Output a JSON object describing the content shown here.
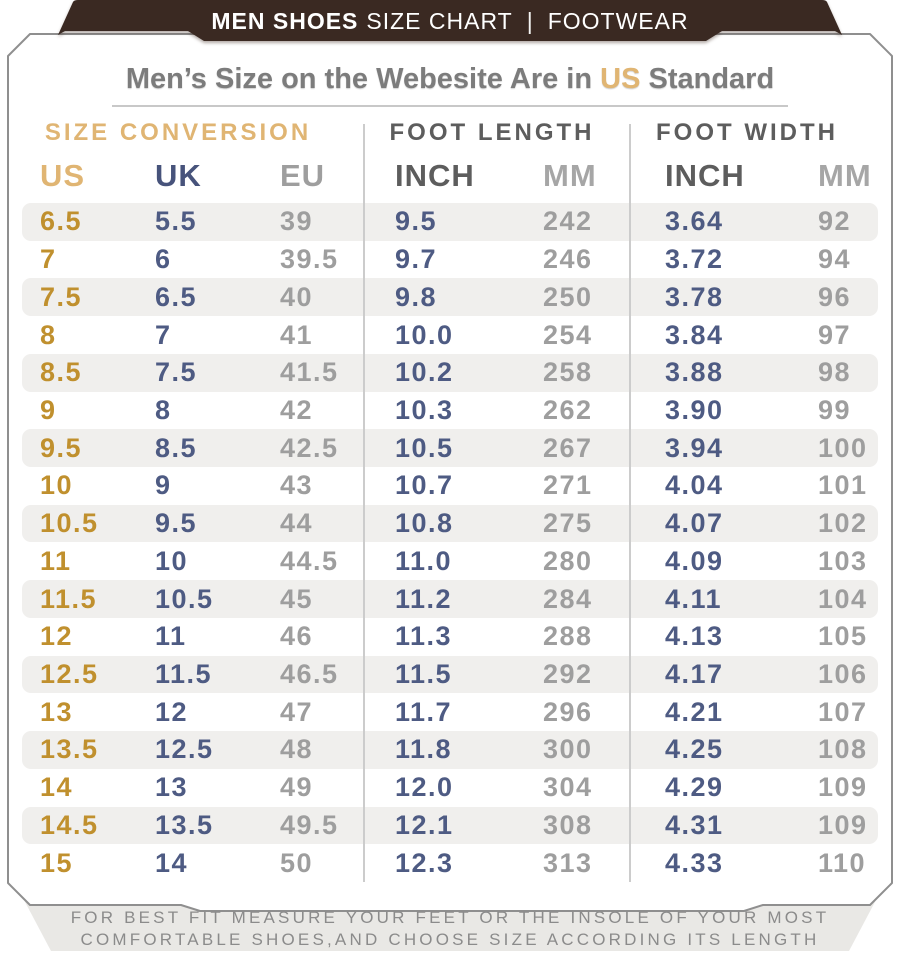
{
  "banner": {
    "title_bold": "MEN SHOES",
    "title_regular": "SIZE CHART",
    "separator": "|",
    "category": "FOOTWEAR"
  },
  "title": {
    "prefix": "Men’s Size on the Webesite Are in ",
    "highlight": "US",
    "suffix": " Standard"
  },
  "chart_data": {
    "type": "table",
    "title": "Men’s Size on the Webesite Are in US Standard",
    "header_groups": [
      {
        "label": "SIZE CONVERSION",
        "columns": [
          "US",
          "UK",
          "EU"
        ]
      },
      {
        "label": "FOOT LENGTH",
        "columns": [
          "INCH",
          "MM"
        ]
      },
      {
        "label": "FOOT WIDTH",
        "columns": [
          "INCH",
          "MM"
        ]
      }
    ],
    "columns": [
      "US",
      "UK",
      "EU",
      "INCH",
      "MM",
      "INCH",
      "MM"
    ],
    "rows": [
      [
        "6.5",
        "5.5",
        "39",
        "9.5",
        "242",
        "3.64",
        "92"
      ],
      [
        "7",
        "6",
        "39.5",
        "9.7",
        "246",
        "3.72",
        "94"
      ],
      [
        "7.5",
        "6.5",
        "40",
        "9.8",
        "250",
        "3.78",
        "96"
      ],
      [
        "8",
        "7",
        "41",
        "10.0",
        "254",
        "3.84",
        "97"
      ],
      [
        "8.5",
        "7.5",
        "41.5",
        "10.2",
        "258",
        "3.88",
        "98"
      ],
      [
        "9",
        "8",
        "42",
        "10.3",
        "262",
        "3.90",
        "99"
      ],
      [
        "9.5",
        "8.5",
        "42.5",
        "10.5",
        "267",
        "3.94",
        "100"
      ],
      [
        "10",
        "9",
        "43",
        "10.7",
        "271",
        "4.04",
        "101"
      ],
      [
        "10.5",
        "9.5",
        "44",
        "10.8",
        "275",
        "4.07",
        "102"
      ],
      [
        "11",
        "10",
        "44.5",
        "11.0",
        "280",
        "4.09",
        "103"
      ],
      [
        "11.5",
        "10.5",
        "45",
        "11.2",
        "284",
        "4.11",
        "104"
      ],
      [
        "12",
        "11",
        "46",
        "11.3",
        "288",
        "4.13",
        "105"
      ],
      [
        "12.5",
        "11.5",
        "46.5",
        "11.5",
        "292",
        "4.17",
        "106"
      ],
      [
        "13",
        "12",
        "47",
        "11.7",
        "296",
        "4.21",
        "107"
      ],
      [
        "13.5",
        "12.5",
        "48",
        "11.8",
        "300",
        "4.25",
        "108"
      ],
      [
        "14",
        "13",
        "49",
        "12.0",
        "304",
        "4.29",
        "109"
      ],
      [
        "14.5",
        "13.5",
        "49.5",
        "12.1",
        "308",
        "4.31",
        "109"
      ],
      [
        "15",
        "14",
        "50",
        "12.3",
        "313",
        "4.33",
        "110"
      ]
    ]
  },
  "footer": {
    "line1": "FOR BEST FIT MEASURE YOUR FEET OR THE INSOLE OF YOUR MOST",
    "line2": "COMFORTABLE SHOES,AND CHOOSE SIZE ACCORDING ITS LENGTH"
  },
  "colors": {
    "banner_bg": "#3a2922",
    "gold_header": "#e0b573",
    "gold_value": "#c0902e",
    "navy": "#4e5b83",
    "navy_header": "#47537b",
    "gray_value": "#9e9e9e",
    "dark_header": "#5d5d5d",
    "mm_header": "#a6a6a6",
    "title_gray": "#7c7c7c",
    "stripe": "#f0efed",
    "footer_band": "#e9e8e5",
    "footer_text": "#8b8b8b",
    "card_border": "#8f8f8f",
    "divider": "#cccccc"
  }
}
